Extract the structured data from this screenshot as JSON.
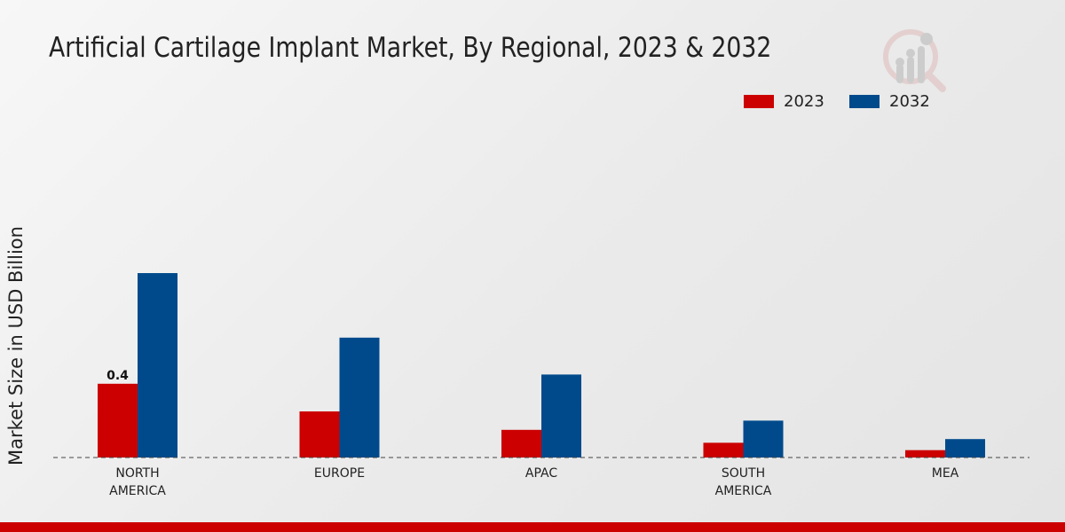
{
  "chart_data": {
    "type": "bar",
    "title": "Artificial Cartilage Implant Market, By Regional, 2023 & 2032",
    "xlabel": "",
    "ylabel": "Market Size in USD Billion",
    "categories": [
      "NORTH AMERICA",
      "EUROPE",
      "APAC",
      "SOUTH AMERICA",
      "MEA"
    ],
    "category_lines": [
      [
        "NORTH",
        "AMERICA"
      ],
      [
        "EUROPE"
      ],
      [
        "APAC"
      ],
      [
        "SOUTH",
        "AMERICA"
      ],
      [
        "MEA"
      ]
    ],
    "series": [
      {
        "name": "2023",
        "color": "#cc0000",
        "values": [
          0.4,
          0.25,
          0.15,
          0.08,
          0.04
        ]
      },
      {
        "name": "2032",
        "color": "#004a8c",
        "values": [
          1.0,
          0.65,
          0.45,
          0.2,
          0.1
        ]
      }
    ],
    "data_labels": [
      {
        "series": 0,
        "index": 0,
        "text": "0.4"
      }
    ],
    "ylim": [
      0,
      1.2
    ],
    "grid": false,
    "legend_position": "top-right"
  }
}
